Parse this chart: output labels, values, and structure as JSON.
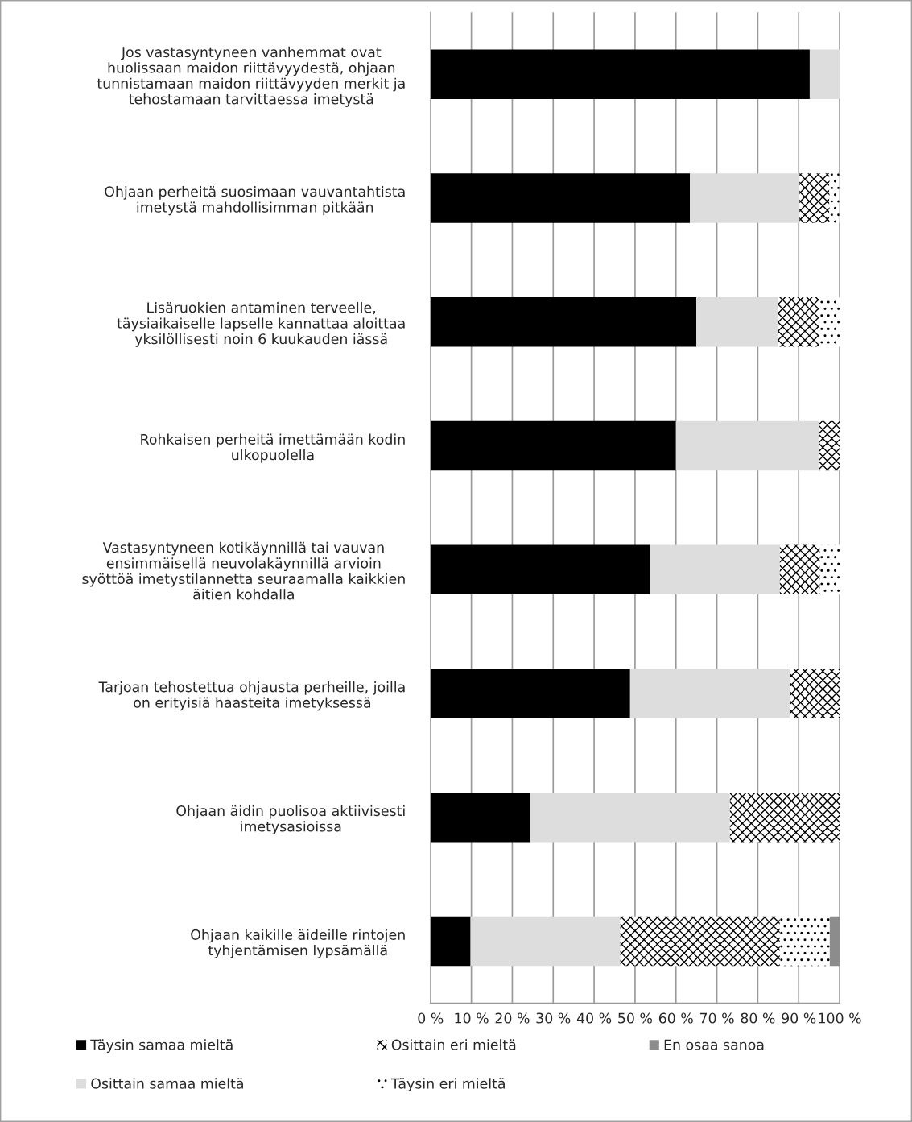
{
  "chart_data": {
    "type": "bar",
    "orientation": "horizontal",
    "stacked": true,
    "categories": [
      "Jos vastasyntyneen vanhemmat ovat\nhuolissaan maidon riittävyydestä, ohjaan\ntunnistamaan maidon riittävyyden merkit ja\ntehostamaan tarvittaessa imetystä",
      "Ohjaan perheitä suosimaan vauvantahtista\nimetystä mahdollisimman pitkään",
      "Lisäruokien antaminen terveelle,\ntäysiaikaiselle lapselle kannattaa aloittaa\nyksilöllisesti noin 6 kuukauden iässä",
      "Rohkaisen perheitä imettämään kodin\nulkopuolella",
      "Vastasyntyneen kotikäynnillä tai vauvan\nensimmäisellä neuvolakäynnillä arvioin\nsyöttöä imetystilannetta seuraamalla kaikkien\näitien kohdalla",
      "Tarjoan tehostettua ohjausta perheille, joilla\non erityisiä haasteita imetyksessä",
      "Ohjaan äidin puolisoa aktiivisesti\nimetysasioissa",
      "Ohjaan kaikille äideille rintojen\ntyhjentämisen lypsämällä"
    ],
    "series": [
      {
        "name": "Täysin samaa mieltä",
        "color": "#000000",
        "values": [
          92.7,
          63.4,
          65,
          60,
          53.7,
          48.8,
          24.4,
          9.8
        ]
      },
      {
        "name": "Osittain samaa mieltä",
        "color": "#dddddd",
        "values": [
          7.3,
          26.8,
          20,
          35,
          31.7,
          39,
          48.8,
          36.6
        ]
      },
      {
        "name": "Osittain eri mieltä",
        "color": "#ffffff",
        "values": [
          0,
          7.3,
          10,
          5,
          9.8,
          12.2,
          26.8,
          39
        ]
      },
      {
        "name": "Täysin eri mieltä",
        "color": "#ffffff",
        "values": [
          0,
          2.4,
          5,
          0,
          4.9,
          0,
          0,
          12.2
        ]
      },
      {
        "name": "En osaa sanoa",
        "color": "#8c8c8c",
        "values": [
          0,
          0,
          0,
          0,
          0,
          0,
          0,
          2.4
        ]
      }
    ],
    "xlim": [
      0,
      100
    ],
    "xticks": [
      {
        "value": 0,
        "label": "0 %"
      },
      {
        "value": 10,
        "label": "10 %"
      },
      {
        "value": 20,
        "label": "20 %"
      },
      {
        "value": 30,
        "label": "30 %"
      },
      {
        "value": 40,
        "label": "40 %"
      },
      {
        "value": 50,
        "label": "50 %"
      },
      {
        "value": 60,
        "label": "60 %"
      },
      {
        "value": 70,
        "label": "70 %"
      },
      {
        "value": 80,
        "label": "80 %"
      },
      {
        "value": 90,
        "label": "90 %"
      },
      {
        "value": 100,
        "label": "100 %"
      }
    ],
    "grid": "x",
    "legend": "bottom"
  }
}
